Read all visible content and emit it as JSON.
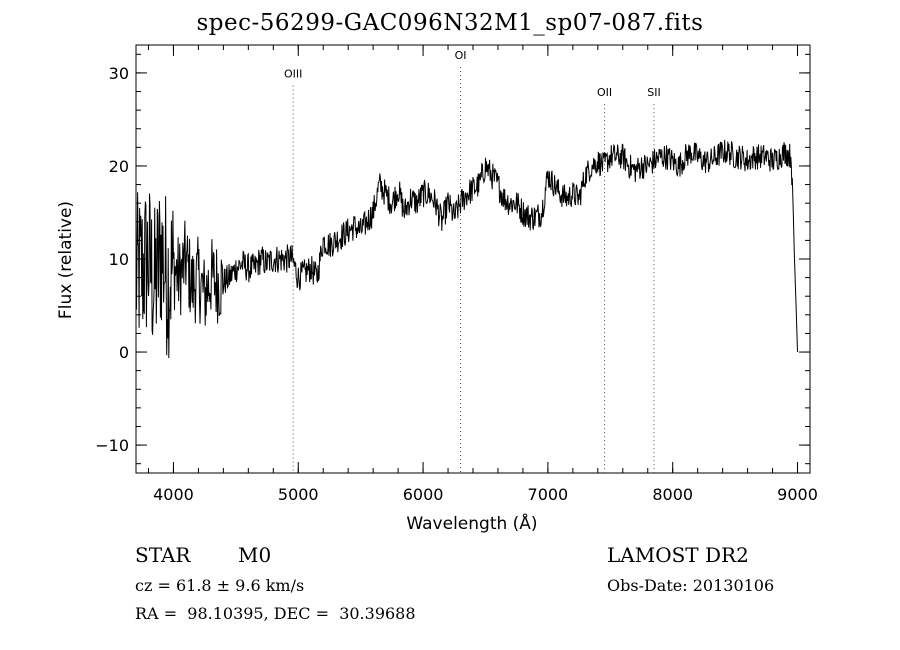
{
  "chart_data": {
    "type": "line",
    "title": "spec-56299-GAC096N32M1_sp07-087.fits",
    "xlabel": "Wavelength (Å)",
    "ylabel": "Flux (relative)",
    "xlim": [
      3700,
      9100
    ],
    "ylim": [
      -13,
      33
    ],
    "xticks": [
      4000,
      5000,
      6000,
      7000,
      8000,
      9000
    ],
    "yticks": [
      -10,
      0,
      10,
      20,
      30
    ],
    "grid": false,
    "lines": [
      {
        "label": "OIII",
        "x": 4959,
        "label_y": 29.5
      },
      {
        "label": "OI",
        "x": 6300,
        "label_y": 31.5
      },
      {
        "label": "OII",
        "x": 7454,
        "label_y": 27.5
      },
      {
        "label": "SII",
        "x": 7850,
        "label_y": 27.5
      }
    ],
    "series": [
      {
        "x": [
          3700,
          3750,
          3800,
          3850,
          3900,
          3950,
          4000,
          4050,
          4100,
          4150,
          4200,
          4250,
          4300,
          4350,
          4400,
          4450,
          4500,
          4550,
          4600,
          4650,
          4700,
          4750,
          4800,
          4850,
          4900,
          4950,
          5000,
          5050,
          5100,
          5150,
          5200,
          5250,
          5300,
          5350,
          5400,
          5450,
          5500,
          5550,
          5600,
          5650,
          5700,
          5750,
          5800,
          5850,
          5900,
          5950,
          6000,
          6050,
          6100,
          6150,
          6200,
          6250,
          6300,
          6350,
          6400,
          6450,
          6500,
          6550,
          6600,
          6650,
          6700,
          6750,
          6800,
          6850,
          6900,
          6950,
          7000,
          7050,
          7100,
          7150,
          7200,
          7250,
          7300,
          7350,
          7400,
          7450,
          7500,
          7550,
          7600,
          7650,
          7700,
          7750,
          7800,
          7850,
          7900,
          7950,
          8000,
          8050,
          8100,
          8150,
          8200,
          8250,
          8300,
          8350,
          8400,
          8450,
          8500,
          8550,
          8600,
          8650,
          8700,
          8750,
          8800,
          8850,
          8900,
          8950,
          9000
        ],
        "y": [
          8,
          9,
          10,
          7,
          11,
          8,
          9,
          8,
          10,
          7,
          8,
          6,
          8,
          7.5,
          7.5,
          8,
          9,
          9.5,
          9,
          9,
          10,
          9.5,
          10,
          10,
          10,
          10,
          8,
          8.5,
          9,
          8,
          12,
          11.5,
          12,
          12.5,
          13,
          13.5,
          13,
          14,
          15,
          18,
          17,
          16,
          17.5,
          15,
          16.5,
          16,
          17,
          17,
          16,
          14,
          16,
          14.5,
          16,
          17,
          17.5,
          18,
          20,
          19,
          18,
          16.5,
          16,
          16,
          15,
          14.5,
          14.5,
          15,
          19,
          18,
          17,
          16.5,
          17,
          16.5,
          19,
          20,
          20.5,
          20,
          21,
          21,
          21,
          20,
          19.5,
          20,
          20,
          20.5,
          21,
          21,
          20.5,
          20,
          21,
          21.5,
          21,
          20.5,
          20.5,
          21,
          21.5,
          21.5,
          21,
          21,
          20.5,
          21,
          21,
          21,
          20.5,
          21,
          21.5,
          21,
          0
        ]
      }
    ]
  },
  "info": {
    "object_class": "STAR",
    "subclass": "M0",
    "survey": "LAMOST DR2",
    "cz": "cz = 61.8 ± 9.6 km/s",
    "obs_date": "Obs-Date: 20130106",
    "coords": "RA =  98.10395, DEC =  30.39688"
  }
}
